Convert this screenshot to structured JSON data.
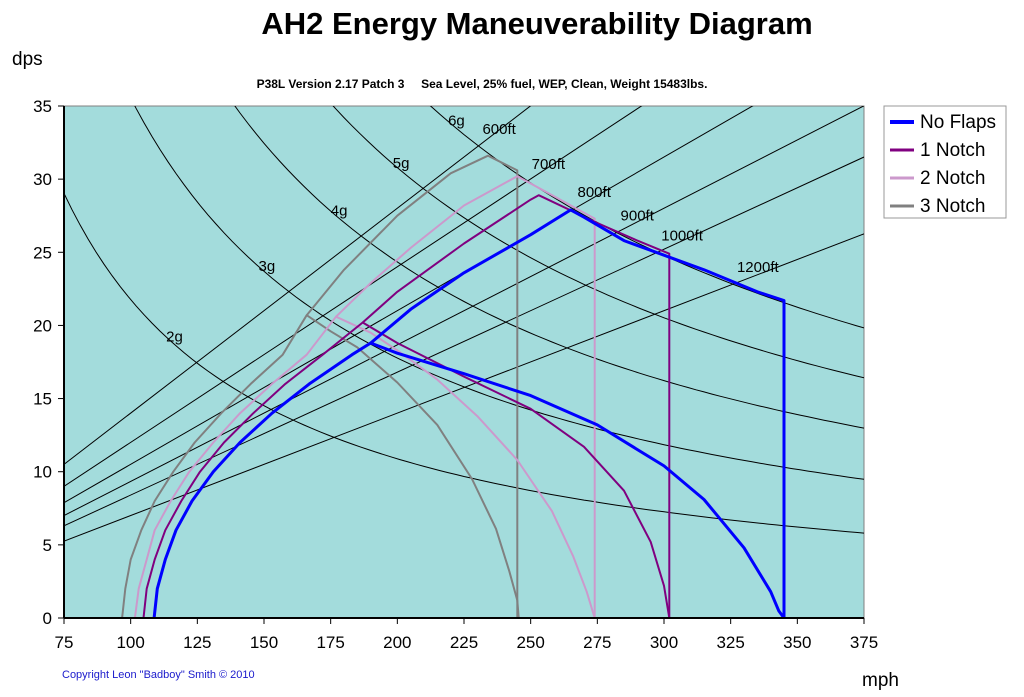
{
  "chart_data": {
    "type": "line",
    "title": "AH2 Energy Maneuverability Diagram",
    "subtitle": "P38L Version 2.17 Patch 3     Sea Level, 25% fuel, WEP, Clean, Weight 15483lbs.",
    "xlabel": "mph",
    "ylabel": "dps",
    "xlim": [
      75,
      375
    ],
    "ylim": [
      0,
      35
    ],
    "xticks": [
      75,
      100,
      125,
      150,
      175,
      200,
      225,
      250,
      275,
      300,
      325,
      350,
      375
    ],
    "yticks": [
      0,
      5,
      10,
      15,
      20,
      25,
      30,
      35
    ],
    "grid": false,
    "legend_position": "right",
    "plot_background": "#a3dcdc",
    "copyright": "Copyright Leon \"Badboy\" Smith © 2010",
    "g_lines": [
      {
        "label": "2g",
        "g": 2
      },
      {
        "label": "3g",
        "g": 3
      },
      {
        "label": "4g",
        "g": 4
      },
      {
        "label": "5g",
        "g": 5
      },
      {
        "label": "6g",
        "g": 6
      }
    ],
    "radius_lines": [
      {
        "label": "600ft",
        "radius": 600
      },
      {
        "label": "700ft",
        "radius": 700
      },
      {
        "label": "800ft",
        "radius": 800
      },
      {
        "label": "900ft",
        "radius": 900
      },
      {
        "label": "1000ft",
        "radius": 1000
      },
      {
        "label": "1200ft",
        "radius": 1200
      }
    ],
    "series": [
      {
        "name": "No Flaps",
        "color": "#0000ff",
        "width": 3,
        "points": [
          [
            108.8,
            0
          ],
          [
            110,
            2
          ],
          [
            113,
            4
          ],
          [
            117,
            6
          ],
          [
            123,
            8
          ],
          [
            131,
            10
          ],
          [
            141,
            12
          ],
          [
            153,
            14
          ],
          [
            167,
            16
          ],
          [
            183,
            18
          ],
          [
            190,
            18.8
          ],
          [
            200,
            18.1
          ],
          [
            225,
            16.7
          ],
          [
            250,
            15.2
          ],
          [
            275,
            13.2
          ],
          [
            300,
            10.4
          ],
          [
            315,
            8.1
          ],
          [
            330,
            4.8
          ],
          [
            340,
            1.8
          ],
          [
            343,
            0.5
          ],
          [
            345,
            0
          ]
        ],
        "envelope": [
          [
            190,
            18.8
          ],
          [
            205,
            21.1
          ],
          [
            225,
            23.6
          ],
          [
            250,
            26.2
          ],
          [
            265,
            27.9
          ],
          [
            270,
            27.4
          ],
          [
            285,
            25.8
          ],
          [
            300,
            24.8
          ],
          [
            315,
            23.8
          ],
          [
            335,
            22.3
          ],
          [
            345,
            21.7
          ],
          [
            345,
            0
          ]
        ]
      },
      {
        "name": "1 Notch",
        "color": "#800080",
        "width": 2,
        "points": [
          [
            104.8,
            0
          ],
          [
            106,
            2
          ],
          [
            109,
            4
          ],
          [
            113,
            6
          ],
          [
            119,
            8
          ],
          [
            126,
            10
          ],
          [
            135,
            12
          ],
          [
            146,
            14
          ],
          [
            158,
            16
          ],
          [
            172,
            18
          ],
          [
            187,
            20.2
          ],
          [
            200,
            18.8
          ],
          [
            225,
            16.5
          ],
          [
            250,
            14.3
          ],
          [
            270,
            11.7
          ],
          [
            285,
            8.7
          ],
          [
            295,
            5.2
          ],
          [
            300,
            2.2
          ],
          [
            302,
            0
          ]
        ],
        "envelope": [
          [
            187,
            20.2
          ],
          [
            200,
            22.3
          ],
          [
            225,
            25.6
          ],
          [
            250,
            28.6
          ],
          [
            253,
            28.9
          ],
          [
            275,
            27
          ],
          [
            290,
            25.8
          ],
          [
            302,
            24.9
          ],
          [
            302,
            0
          ]
        ]
      },
      {
        "name": "2 Notch",
        "color": "#cc99cc",
        "width": 2,
        "points": [
          [
            101.6,
            0
          ],
          [
            103,
            2
          ],
          [
            106,
            4
          ],
          [
            109,
            6
          ],
          [
            115,
            8
          ],
          [
            122,
            10
          ],
          [
            131,
            12
          ],
          [
            141,
            14
          ],
          [
            153,
            16
          ],
          [
            166,
            18
          ],
          [
            177,
            20.6
          ],
          [
            190,
            19.5
          ],
          [
            200,
            18.3
          ],
          [
            215,
            16.3
          ],
          [
            230,
            13.8
          ],
          [
            245,
            10.8
          ],
          [
            258,
            7.3
          ],
          [
            266,
            4.2
          ],
          [
            271,
            1.8
          ],
          [
            274,
            0
          ]
        ],
        "envelope": [
          [
            177,
            20.6
          ],
          [
            190,
            22.9
          ],
          [
            205,
            25.3
          ],
          [
            225,
            28.2
          ],
          [
            245,
            30.2
          ],
          [
            255,
            29.2
          ],
          [
            270,
            27.7
          ],
          [
            274,
            27.3
          ],
          [
            274,
            0
          ]
        ]
      },
      {
        "name": "3 Notch",
        "color": "#808080",
        "width": 2,
        "points": [
          [
            96.8,
            0
          ],
          [
            98,
            2
          ],
          [
            100,
            4
          ],
          [
            104,
            6
          ],
          [
            109,
            8
          ],
          [
            116,
            10
          ],
          [
            124,
            12
          ],
          [
            134,
            14
          ],
          [
            145,
            16
          ],
          [
            157,
            18
          ],
          [
            166,
            20.7
          ],
          [
            175,
            19.6
          ],
          [
            185,
            18.5
          ],
          [
            200,
            16.1
          ],
          [
            215,
            13.2
          ],
          [
            228,
            9.5
          ],
          [
            237,
            6.1
          ],
          [
            242,
            3.2
          ],
          [
            245,
            1.2
          ],
          [
            245.5,
            0
          ]
        ],
        "envelope": [
          [
            166,
            20.7
          ],
          [
            180,
            23.8
          ],
          [
            200,
            27.5
          ],
          [
            220,
            30.4
          ],
          [
            234,
            31.6
          ],
          [
            245,
            30.6
          ],
          [
            245,
            0
          ]
        ]
      }
    ]
  }
}
